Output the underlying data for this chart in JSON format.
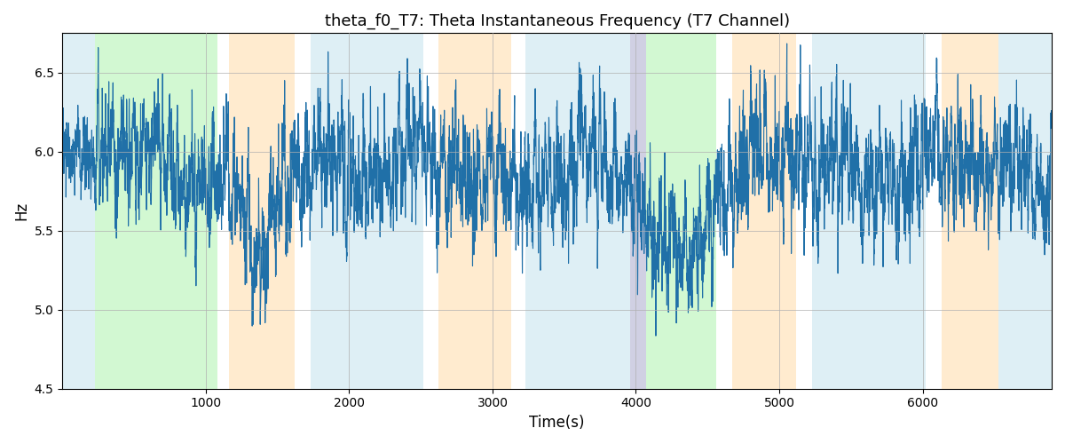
{
  "title": "theta_f0_T7: Theta Instantaneous Frequency (T7 Channel)",
  "xlabel": "Time(s)",
  "ylabel": "Hz",
  "ylim": [
    4.5,
    6.75
  ],
  "xlim": [
    0,
    6900
  ],
  "line_color": "#2070a8",
  "line_width": 0.8,
  "background_color": "#ffffff",
  "grid_color": "#b0b0b0",
  "seed": 12,
  "n_points": 6900,
  "bands": [
    {
      "start": 0,
      "end": 230,
      "color": "#add8e6",
      "alpha": 0.4
    },
    {
      "start": 230,
      "end": 1080,
      "color": "#90ee90",
      "alpha": 0.4
    },
    {
      "start": 1080,
      "end": 1160,
      "color": "#ffffff",
      "alpha": 0.0
    },
    {
      "start": 1160,
      "end": 1620,
      "color": "#ffd9a0",
      "alpha": 0.5
    },
    {
      "start": 1620,
      "end": 1730,
      "color": "#ffffff",
      "alpha": 0.0
    },
    {
      "start": 1730,
      "end": 2520,
      "color": "#add8e6",
      "alpha": 0.4
    },
    {
      "start": 2520,
      "end": 2620,
      "color": "#ffffff",
      "alpha": 0.0
    },
    {
      "start": 2620,
      "end": 3130,
      "color": "#ffd9a0",
      "alpha": 0.5
    },
    {
      "start": 3130,
      "end": 3230,
      "color": "#ffffff",
      "alpha": 0.0
    },
    {
      "start": 3230,
      "end": 3960,
      "color": "#add8e6",
      "alpha": 0.4
    },
    {
      "start": 3960,
      "end": 4070,
      "color": "#aaaacc",
      "alpha": 0.55
    },
    {
      "start": 4070,
      "end": 4560,
      "color": "#90ee90",
      "alpha": 0.4
    },
    {
      "start": 4560,
      "end": 4670,
      "color": "#ffffff",
      "alpha": 0.0
    },
    {
      "start": 4670,
      "end": 5120,
      "color": "#ffd9a0",
      "alpha": 0.5
    },
    {
      "start": 5120,
      "end": 5230,
      "color": "#ffffff",
      "alpha": 0.0
    },
    {
      "start": 5230,
      "end": 6020,
      "color": "#add8e6",
      "alpha": 0.4
    },
    {
      "start": 6020,
      "end": 6130,
      "color": "#ffffff",
      "alpha": 0.0
    },
    {
      "start": 6130,
      "end": 6530,
      "color": "#ffd9a0",
      "alpha": 0.5
    },
    {
      "start": 6530,
      "end": 6900,
      "color": "#add8e6",
      "alpha": 0.4
    }
  ]
}
